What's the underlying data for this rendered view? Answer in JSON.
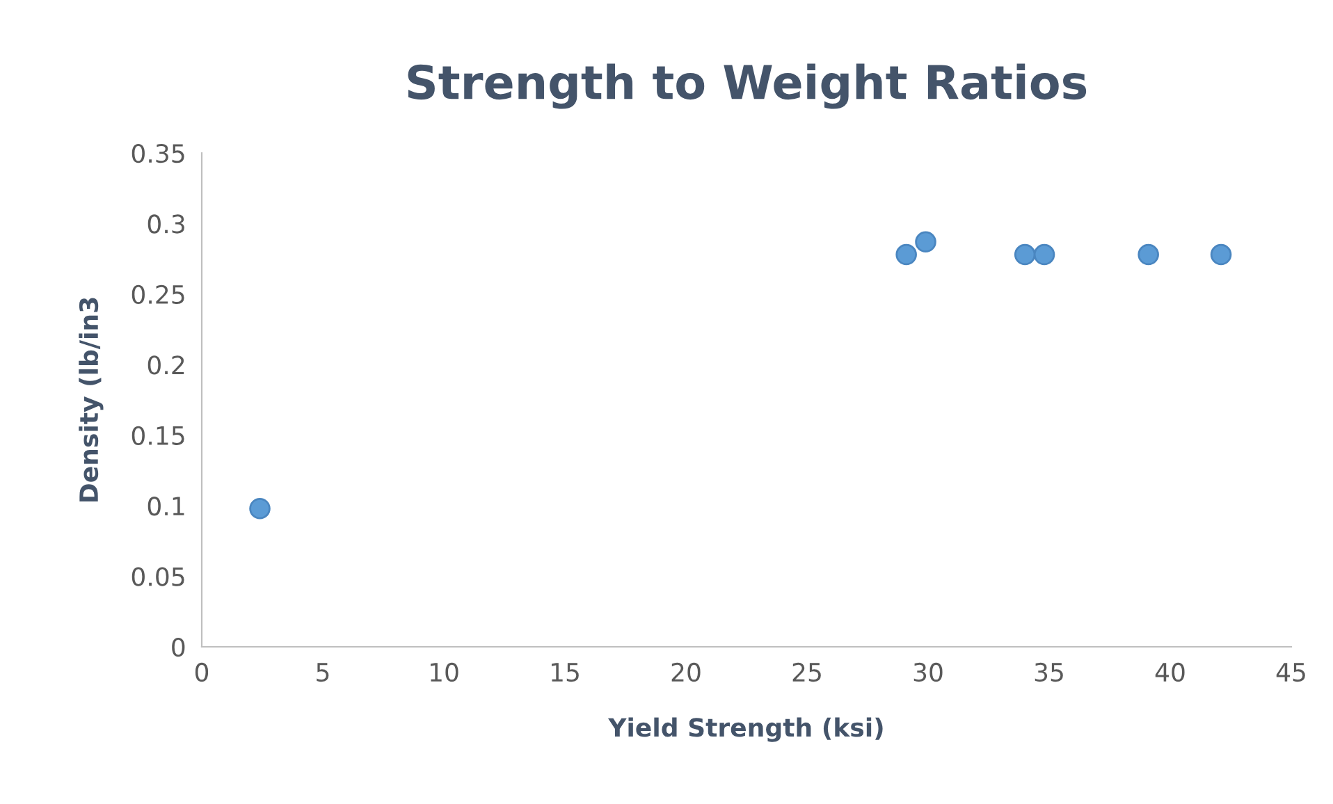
{
  "chart_data": {
    "type": "scatter",
    "title": "Strength to Weight Ratios",
    "xlabel": "Yield Strength (ksi)",
    "ylabel": "Density (lb/in3",
    "x": [
      2.4,
      29.1,
      29.9,
      34.0,
      34.8,
      39.1,
      42.1
    ],
    "series": [
      {
        "color": "#5b9bd5",
        "values": [
          0.098,
          0.278,
          0.287,
          0.278,
          0.278,
          0.278,
          0.278
        ]
      }
    ],
    "xlim": [
      0,
      45
    ],
    "xticks": [
      0,
      5,
      10,
      15,
      20,
      25,
      30,
      35,
      40,
      45
    ],
    "ylim": [
      0,
      0.35
    ],
    "yticks": [
      0,
      0.05,
      0.1,
      0.15,
      0.2,
      0.25,
      0.3,
      0.35
    ],
    "marker": "circle",
    "grid": false,
    "legend": false
  }
}
